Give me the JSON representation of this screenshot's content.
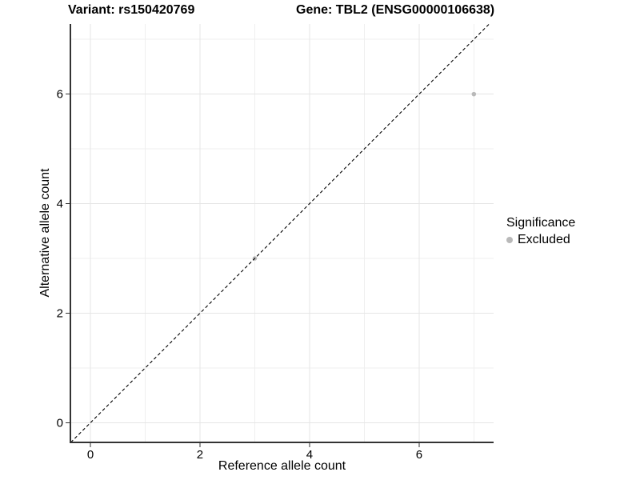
{
  "titles": {
    "variant": "Variant: rs150420769",
    "gene": "Gene: TBL2 (ENSG00000106638)"
  },
  "legend": {
    "title": "Significance",
    "items": [
      {
        "label": "Excluded",
        "color": "#b9b9b9"
      }
    ]
  },
  "chart_data": {
    "type": "scatter",
    "title": "Variant: rs150420769 — Gene: TBL2 (ENSG00000106638)",
    "xlabel": "Reference allele count",
    "ylabel": "Alternative allele count",
    "x_ticks": [
      0,
      2,
      4,
      6
    ],
    "y_ticks": [
      0,
      2,
      4,
      6
    ],
    "x_minor_gridlines": [
      1,
      3,
      5,
      7
    ],
    "y_minor_gridlines": [
      1,
      3,
      5,
      7
    ],
    "xlim": [
      -0.365,
      7.36
    ],
    "ylim": [
      -0.358,
      7.28
    ],
    "grid": true,
    "legend_position": "right",
    "series": [
      {
        "name": "Excluded",
        "color": "#b9b9b9",
        "points": [
          {
            "x": 3,
            "y": 3
          },
          {
            "x": 7,
            "y": 6
          }
        ]
      }
    ],
    "reference_line": {
      "kind": "identity",
      "style": "dashed",
      "color": "#000000"
    }
  },
  "colors": {
    "background": "#ffffff",
    "axis_line": "#333333",
    "grid_major": "#e5e5e5",
    "grid_minor": "#efefef",
    "excluded_point": "#b9b9b9",
    "text": "#000000"
  }
}
